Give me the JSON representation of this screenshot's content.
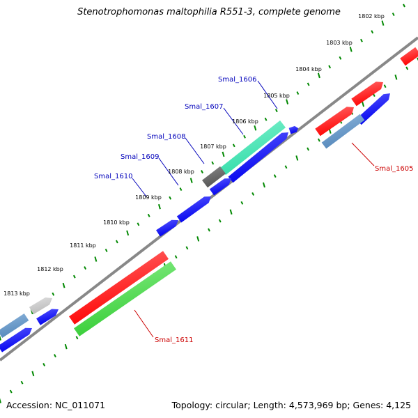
{
  "title": "Stenotrophomonas maltophilia R551-3, complete genome",
  "footer": {
    "accession": "Accession: NC_011071",
    "summary": "Topology: circular; Length: 4,573,969 bp; Genes: 4,125"
  },
  "colors": {
    "forward": "#ff0000",
    "reverse": "#0000ee",
    "label_forward": "#cc0000",
    "label_reverse": "#0000bb",
    "rna": "#33cc33",
    "pseudo": "#5588bb",
    "light": "#bbbbbb",
    "dark": "#555555",
    "teal": "#33ddaa",
    "ticks": "#008800",
    "backbone": "#888888"
  },
  "scale": {
    "unit": "kbp",
    "labels": [
      "1802 kbp",
      "1803 kbp",
      "1804 kbp",
      "1805 kbp",
      "1806 kbp",
      "1807 kbp",
      "1808 kbp",
      "1809 kbp",
      "1810 kbp",
      "1811 kbp",
      "1812 kbp",
      "1813 kbp"
    ]
  },
  "gene_labels": [
    {
      "text": "Smal_1605",
      "strand": "forward"
    },
    {
      "text": "Smal_1606",
      "strand": "reverse"
    },
    {
      "text": "Smal_1607",
      "strand": "reverse"
    },
    {
      "text": "Smal_1608",
      "strand": "reverse"
    },
    {
      "text": "Smal_1609",
      "strand": "reverse"
    },
    {
      "text": "Smal_1610",
      "strand": "reverse"
    },
    {
      "text": "Smal_1611",
      "strand": "forward"
    }
  ]
}
